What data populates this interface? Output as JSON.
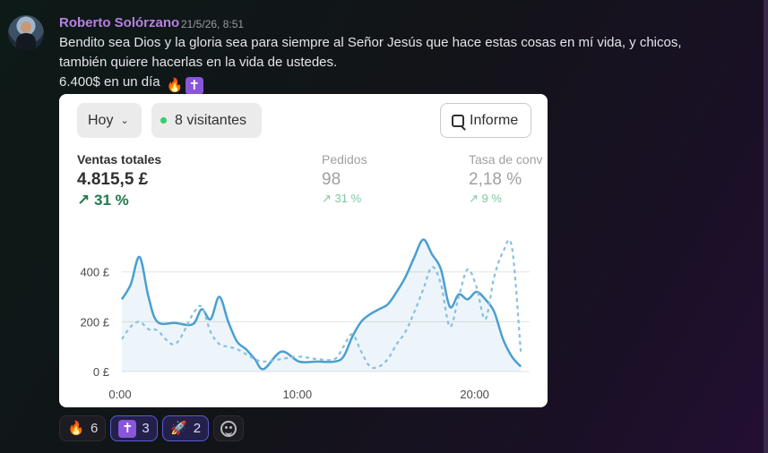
{
  "message": {
    "author": "Roberto Solórzano",
    "timestamp": "21/5/26, 8:51",
    "lines": [
      "Bendito sea Dios y la gloria sea para siempre al Señor Jesús que hace estas cosas en mí vida, y chicos,",
      "también quiere hacerlas en la vida de ustedes.",
      "6.400$ en un día"
    ],
    "inline_emojis": [
      "fire",
      "latin-cross"
    ]
  },
  "card": {
    "period_selector": "Hoy",
    "visitors": "8 visitantes",
    "report_button": "Informe",
    "metrics": [
      {
        "label": "Ventas totales",
        "value": "4.815,5 £",
        "change": "31 %"
      },
      {
        "label": "Pedidos",
        "value": "98",
        "change": "31 %"
      },
      {
        "label": "Tasa de conv",
        "value": "2,18 %",
        "change": "9 %"
      }
    ],
    "colors": {
      "primary": "#4a9fd0",
      "positive": "#1f7a4a",
      "positive_light": "#7fcaa0",
      "live_dot": "#2fcf6a"
    }
  },
  "chart_data": {
    "type": "line",
    "x_ticks": [
      "0:00",
      "10:00",
      "20:00"
    ],
    "y_ticks": [
      "0 £",
      "200 £",
      "400 £"
    ],
    "ylim": [
      0,
      550
    ],
    "xlim": [
      0,
      23
    ],
    "grid": true,
    "series": [
      {
        "style": "solid-area",
        "x": [
          0,
          0.5,
          1,
          1.5,
          2,
          3,
          4,
          4.5,
          5,
          5.5,
          6,
          6.5,
          7,
          7.5,
          8,
          9,
          10,
          11,
          12,
          12.5,
          13,
          13.5,
          14,
          14.5,
          15,
          15.5,
          16,
          16.5,
          17,
          17.5,
          18,
          18.5,
          19,
          19.5,
          20,
          20.5,
          21,
          21.5,
          22,
          22.5
        ],
        "y": [
          290,
          350,
          460,
          300,
          200,
          195,
          190,
          250,
          210,
          300,
          200,
          120,
          90,
          50,
          10,
          80,
          40,
          40,
          40,
          60,
          140,
          200,
          230,
          250,
          270,
          320,
          380,
          460,
          530,
          470,
          410,
          260,
          310,
          290,
          320,
          290,
          240,
          130,
          60,
          20
        ]
      },
      {
        "style": "dashed",
        "x": [
          0,
          0.5,
          1,
          1.5,
          2,
          3,
          4,
          4.5,
          5,
          5.5,
          6,
          6.5,
          7,
          7.5,
          8,
          9,
          10,
          11,
          12,
          12.5,
          13,
          13.5,
          14,
          14.5,
          15,
          15.5,
          16,
          16.5,
          17,
          17.5,
          18,
          18.5,
          19,
          19.5,
          20,
          20.5,
          21,
          21.5,
          22,
          22.5
        ],
        "y": [
          130,
          180,
          200,
          170,
          165,
          110,
          230,
          260,
          160,
          110,
          100,
          90,
          70,
          50,
          40,
          50,
          60,
          50,
          50,
          100,
          150,
          80,
          20,
          20,
          50,
          110,
          160,
          240,
          330,
          420,
          350,
          180,
          300,
          410,
          340,
          210,
          380,
          480,
          500,
          80
        ]
      }
    ]
  },
  "reactions": [
    {
      "emoji": "fire",
      "count": "6",
      "active": false
    },
    {
      "emoji": "latin-cross",
      "count": "3",
      "active": true
    },
    {
      "emoji": "rocket",
      "count": "2",
      "active": true
    }
  ],
  "add_reaction_icon": "smiley-add-icon"
}
